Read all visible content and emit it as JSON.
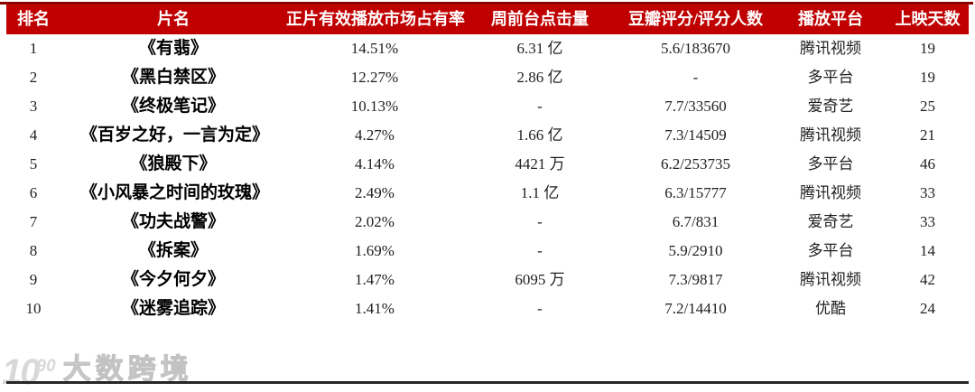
{
  "table": {
    "columns": [
      {
        "key": "rank",
        "label": "排名"
      },
      {
        "key": "title",
        "label": "片名"
      },
      {
        "key": "share",
        "label": "正片有效播放市场占有率"
      },
      {
        "key": "clicks",
        "label": "周前台点击量"
      },
      {
        "key": "douban",
        "label": "豆瓣评分/评分人数"
      },
      {
        "key": "platform",
        "label": "播放平台"
      },
      {
        "key": "days",
        "label": "上映天数"
      }
    ],
    "rows": [
      [
        "1",
        "《有翡》",
        "14.51%",
        "6.31 亿",
        "5.6/183670",
        "腾讯视频",
        "19"
      ],
      [
        "2",
        "《黑白禁区》",
        "12.27%",
        "2.86 亿",
        "-",
        "多平台",
        "19"
      ],
      [
        "3",
        "《终极笔记》",
        "10.13%",
        "-",
        "7.7/33560",
        "爱奇艺",
        "25"
      ],
      [
        "4",
        "《百岁之好，一言为定》",
        "4.27%",
        "1.66 亿",
        "7.3/14509",
        "腾讯视频",
        "21"
      ],
      [
        "5",
        "《狼殿下》",
        "4.14%",
        "4421 万",
        "6.2/253735",
        "多平台",
        "46"
      ],
      [
        "6",
        "《小风暴之时间的玫瑰》",
        "2.49%",
        "1.1 亿",
        "6.3/15777",
        "腾讯视频",
        "33"
      ],
      [
        "7",
        "《功夫战警》",
        "2.02%",
        "-",
        "6.7/831",
        "爱奇艺",
        "33"
      ],
      [
        "8",
        "《拆案》",
        "1.69%",
        "-",
        "5.9/2910",
        "多平台",
        "14"
      ],
      [
        "9",
        "《今夕何夕》",
        "1.47%",
        "6095 万",
        "7.3/9817",
        "腾讯视频",
        "42"
      ],
      [
        "10",
        "《迷雾追踪》",
        "1.41%",
        "-",
        "7.2/14410",
        "优酷",
        "24"
      ]
    ]
  },
  "watermark": {
    "logo_text": "10",
    "logo_sup": "90",
    "text": "大数跨境"
  },
  "colors": {
    "header_bg": "#C00000",
    "header_top_border": "#8d0000",
    "header_text": "#FFFFFF",
    "bottom_border": "#262626",
    "watermark": "#d2d2d2"
  }
}
